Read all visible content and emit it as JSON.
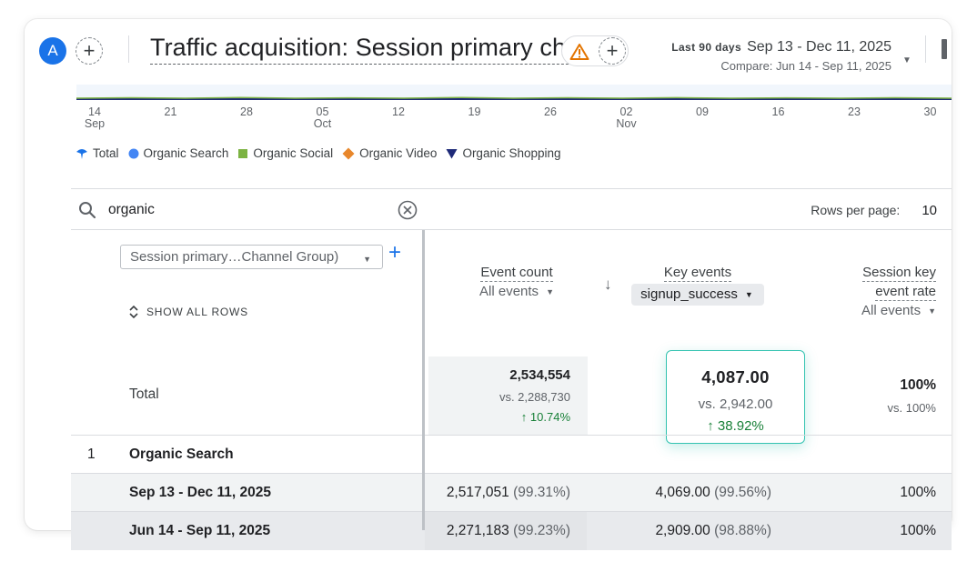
{
  "header": {
    "avatar_letter": "A",
    "title": "Traffic acquisition: Session primary ch...",
    "date_range_label": "Last 90 days",
    "date_range": "Sep 13 - Dec 11, 2025",
    "compare_range": "Compare: Jun 14 - Sep 11, 2025"
  },
  "chart": {
    "ticks": [
      {
        "day": "14",
        "month": "Sep"
      },
      {
        "day": "21",
        "month": ""
      },
      {
        "day": "28",
        "month": ""
      },
      {
        "day": "05",
        "month": "Oct"
      },
      {
        "day": "12",
        "month": ""
      },
      {
        "day": "19",
        "month": ""
      },
      {
        "day": "26",
        "month": ""
      },
      {
        "day": "02",
        "month": "Nov"
      },
      {
        "day": "09",
        "month": ""
      },
      {
        "day": "16",
        "month": ""
      },
      {
        "day": "23",
        "month": ""
      },
      {
        "day": "30",
        "month": ""
      }
    ],
    "legend": [
      {
        "label": "Total",
        "color": "#1a73e8",
        "icon": "pin-marker-icon"
      },
      {
        "label": "Organic Search",
        "color": "#4285f4",
        "icon": "circle-marker-icon"
      },
      {
        "label": "Organic Social",
        "color": "#7cb342",
        "icon": "square-marker-icon"
      },
      {
        "label": "Organic Video",
        "color": "#e8872b",
        "icon": "diamond-marker-icon"
      },
      {
        "label": "Organic Shopping",
        "color": "#1e2a78",
        "icon": "triangle-marker-icon"
      }
    ]
  },
  "table": {
    "search_value": "organic",
    "rows_per_page_label": "Rows per page:",
    "rows_per_page_value": "10",
    "dimension_select": "Session primary…Channel Group)",
    "show_all_rows": "SHOW ALL ROWS",
    "columns": {
      "event_count": {
        "title": "Event count",
        "sub": "All events"
      },
      "key_events": {
        "title": "Key events",
        "sub": "signup_success"
      },
      "session_key_event_rate": {
        "title_line1": "Session key",
        "title_line2": "event rate",
        "sub": "All events"
      }
    },
    "totals": {
      "label": "Total",
      "event_count": "2,534,554",
      "event_count_vs": "vs. 2,288,730",
      "event_count_change": "↑ 10.74%",
      "key_events": "4,087.00",
      "key_events_vs": "vs. 2,942.00",
      "key_events_change": "↑ 38.92%",
      "rate": "100%",
      "rate_vs": "vs. 100%"
    },
    "rows": [
      {
        "index": "1",
        "label": "Organic Search"
      },
      {
        "label": "Sep 13 - Dec 11, 2025",
        "event_count": "2,517,051",
        "event_count_pct": "(99.31%)",
        "key_events": "4,069.00",
        "key_events_pct": "(99.56%)",
        "rate": "100%"
      },
      {
        "label": "Jun 14 - Sep 11, 2025",
        "event_count": "2,271,183",
        "event_count_pct": "(99.23%)",
        "key_events": "2,909.00",
        "key_events_pct": "(98.88%)",
        "rate": "100%"
      }
    ]
  }
}
